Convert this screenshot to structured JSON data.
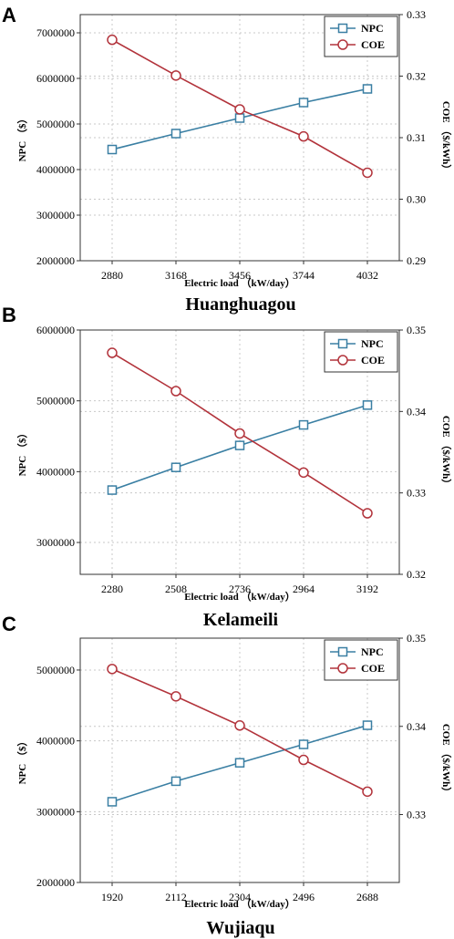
{
  "colors": {
    "npc": "#3a7fa3",
    "coe": "#b2333b",
    "grid": "#c8c8c8"
  },
  "chart_data": [
    {
      "type": "line",
      "panel": "A",
      "site": "Huanghuagou",
      "xlabel": "Electric load （kW/day）",
      "ylabel_left": "NPC （$）",
      "ylabel_right": "COE （$/kWh）",
      "categories": [
        "2880",
        "3168",
        "3456",
        "3744",
        "4032"
      ],
      "left_ticks": [
        "2000000",
        "3000000",
        "4000000",
        "5000000",
        "6000000",
        "7000000"
      ],
      "right_ticks": [
        "0.29",
        "0.30",
        "0.31",
        "0.32",
        "0.33"
      ],
      "left_range": [
        2000000,
        7400000
      ],
      "right_range": [
        0.29,
        0.33
      ],
      "grid": "dotted",
      "legend": "top-right",
      "series": [
        {
          "name": "NPC",
          "axis": "left",
          "marker": "square",
          "values": [
            4440000,
            4790000,
            5130000,
            5470000,
            5770000
          ]
        },
        {
          "name": "COE",
          "axis": "right",
          "marker": "circle",
          "values": [
            0.3259,
            0.3201,
            0.3146,
            0.3102,
            0.3043
          ]
        }
      ]
    },
    {
      "type": "line",
      "panel": "B",
      "site": "Kelameili",
      "xlabel": "Electric load （kW/day）",
      "ylabel_left": "NPC （$）",
      "ylabel_right": "COE （$/kWh）",
      "categories": [
        "2280",
        "2508",
        "2736",
        "2964",
        "3192"
      ],
      "left_ticks": [
        "3000000",
        "4000000",
        "5000000",
        "6000000"
      ],
      "right_ticks": [
        "0.32",
        "0.33",
        "0.34",
        "0.35"
      ],
      "left_range": [
        2550000,
        6000000
      ],
      "right_range": [
        0.32,
        0.35
      ],
      "grid": "dotted",
      "legend": "top-right",
      "series": [
        {
          "name": "NPC",
          "axis": "left",
          "marker": "square",
          "values": [
            3740000,
            4060000,
            4370000,
            4660000,
            4940000
          ]
        },
        {
          "name": "COE",
          "axis": "right",
          "marker": "circle",
          "values": [
            0.3472,
            0.3425,
            0.3373,
            0.3325,
            0.3275
          ]
        }
      ]
    },
    {
      "type": "line",
      "panel": "C",
      "site": "Wujiaqu",
      "xlabel": "Electric load （kW/day）",
      "ylabel_left": "NPC （$）",
      "ylabel_right": "COE （$/kWh）",
      "categories": [
        "1920",
        "2112",
        "2304",
        "2496",
        "2688"
      ],
      "left_ticks": [
        "2000000",
        "3000000",
        "4000000",
        "5000000"
      ],
      "right_ticks": [
        "0.33",
        "0.34",
        "0.35"
      ],
      "left_range": [
        2000000,
        5450000
      ],
      "right_range": [
        0.3223,
        0.35
      ],
      "grid": "dotted",
      "legend": "top-right",
      "series": [
        {
          "name": "NPC",
          "axis": "left",
          "marker": "square",
          "values": [
            3140000,
            3430000,
            3690000,
            3950000,
            4220000
          ]
        },
        {
          "name": "COE",
          "axis": "right",
          "marker": "circle",
          "values": [
            0.3465,
            0.3434,
            0.3401,
            0.3362,
            0.3326
          ]
        }
      ]
    }
  ]
}
